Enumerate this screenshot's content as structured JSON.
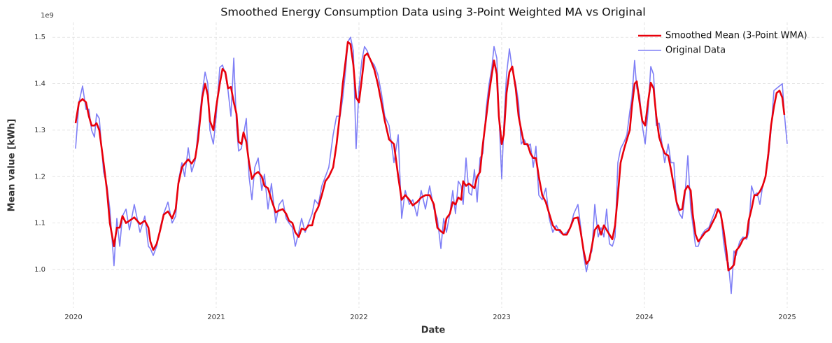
{
  "chart_data": {
    "type": "line",
    "title": "Smoothed Energy Consumption Data using 3-Point Weighted MA vs Original",
    "x_label": "Date",
    "y_label": "Mean value [kWh]",
    "y_offset_label": "1e9",
    "xlim": [
      2019.853,
      2025.255
    ],
    "ylim": [
      0.917,
      1.532
    ],
    "xticks": [
      2020,
      2021,
      2022,
      2023,
      2024,
      2025
    ],
    "yticks": [
      {
        "value": 1,
        "label": "1.0"
      },
      1.1,
      1.2,
      1.3,
      1.4,
      1.5
    ],
    "grid": true,
    "legend": "upper right",
    "x": [
      2020.015,
      2020.039,
      2020.064,
      2020.088,
      2020.108,
      2020.127,
      2020.147,
      2020.162,
      2020.181,
      2020.211,
      2020.235,
      2020.255,
      2020.284,
      2020.304,
      2020.324,
      2020.343,
      2020.368,
      2020.392,
      2020.426,
      2020.466,
      2020.5,
      2020.525,
      2020.539,
      2020.559,
      2020.583,
      2020.608,
      2020.632,
      2020.662,
      2020.691,
      2020.716,
      2020.735,
      2020.76,
      2020.779,
      2020.804,
      2020.828,
      2020.853,
      2020.873,
      2020.902,
      2020.922,
      2020.941,
      2020.956,
      2020.98,
      2021.0,
      2021.025,
      2021.044,
      2021.064,
      2021.083,
      2021.103,
      2021.123,
      2021.142,
      2021.157,
      2021.176,
      2021.191,
      2021.211,
      2021.23,
      2021.25,
      2021.27,
      2021.294,
      2021.319,
      2021.338,
      2021.363,
      2021.387,
      2021.417,
      2021.441,
      2021.466,
      2021.49,
      2021.51,
      2021.534,
      2021.554,
      2021.578,
      2021.598,
      2021.623,
      2021.647,
      2021.672,
      2021.691,
      2021.716,
      2021.74,
      2021.765,
      2021.789,
      2021.819,
      2021.843,
      2021.868,
      2021.887,
      2021.907,
      2021.922,
      2021.941,
      2021.961,
      2021.98,
      2022.0,
      2022.02,
      2022.039,
      2022.059,
      2022.083,
      2022.108,
      2022.132,
      2022.157,
      2022.181,
      2022.211,
      2022.245,
      2022.275,
      2022.299,
      2022.324,
      2022.353,
      2022.377,
      2022.407,
      2022.436,
      2022.466,
      2022.495,
      2022.525,
      2022.549,
      2022.574,
      2022.593,
      2022.613,
      2022.637,
      2022.657,
      2022.676,
      2022.696,
      2022.716,
      2022.73,
      2022.75,
      2022.77,
      2022.789,
      2022.809,
      2022.828,
      2022.848,
      2022.868,
      2022.892,
      2022.912,
      2022.931,
      2022.946,
      2022.966,
      2022.98,
      2023.0,
      2023.015,
      2023.034,
      2023.054,
      2023.074,
      2023.098,
      2023.118,
      2023.137,
      2023.157,
      2023.181,
      2023.201,
      2023.221,
      2023.24,
      2023.26,
      2023.284,
      2023.309,
      2023.333,
      2023.358,
      2023.382,
      2023.407,
      2023.431,
      2023.456,
      2023.48,
      2023.505,
      2023.534,
      2023.554,
      2023.574,
      2023.593,
      2023.613,
      2023.632,
      2023.652,
      2023.676,
      2023.696,
      2023.716,
      2023.735,
      2023.755,
      2023.775,
      2023.794,
      2023.814,
      2023.833,
      2023.858,
      2023.877,
      2023.897,
      2023.912,
      2023.931,
      2023.946,
      2023.966,
      2023.985,
      2024.005,
      2024.025,
      2024.044,
      2024.064,
      2024.083,
      2024.103,
      2024.123,
      2024.142,
      2024.167,
      2024.186,
      2024.206,
      2024.225,
      2024.245,
      2024.265,
      2024.284,
      2024.304,
      2024.324,
      2024.338,
      2024.358,
      2024.377,
      2024.402,
      2024.426,
      2024.451,
      2024.475,
      2024.5,
      2024.515,
      2024.534,
      2024.554,
      2024.574,
      2024.588,
      2024.608,
      2024.627,
      2024.642,
      2024.667,
      2024.691,
      2024.716,
      2024.73,
      2024.75,
      2024.77,
      2024.789,
      2024.809,
      2024.828,
      2024.848,
      2024.868,
      2024.887,
      2024.907,
      2024.926,
      2024.946,
      2024.966,
      2024.98,
      2025.0
    ],
    "series": [
      {
        "name": "Smoothed Mean (3-Point WMA)",
        "color": "#e8000b",
        "width": 2.6,
        "opacity": 1,
        "values": [
          1.315,
          1.36,
          1.367,
          1.36,
          1.33,
          1.31,
          1.31,
          1.315,
          1.3,
          1.23,
          1.17,
          1.1,
          1.05,
          1.09,
          1.09,
          1.115,
          1.1,
          1.105,
          1.112,
          1.098,
          1.105,
          1.09,
          1.06,
          1.042,
          1.055,
          1.085,
          1.118,
          1.125,
          1.11,
          1.13,
          1.185,
          1.22,
          1.228,
          1.237,
          1.228,
          1.24,
          1.28,
          1.37,
          1.4,
          1.375,
          1.32,
          1.3,
          1.35,
          1.4,
          1.432,
          1.425,
          1.39,
          1.393,
          1.36,
          1.335,
          1.275,
          1.27,
          1.295,
          1.275,
          1.23,
          1.195,
          1.205,
          1.21,
          1.2,
          1.18,
          1.175,
          1.15,
          1.123,
          1.127,
          1.13,
          1.12,
          1.105,
          1.1,
          1.08,
          1.07,
          1.088,
          1.085,
          1.095,
          1.095,
          1.12,
          1.135,
          1.16,
          1.19,
          1.2,
          1.22,
          1.27,
          1.34,
          1.4,
          1.45,
          1.49,
          1.485,
          1.44,
          1.37,
          1.36,
          1.41,
          1.46,
          1.465,
          1.45,
          1.43,
          1.4,
          1.36,
          1.32,
          1.28,
          1.27,
          1.2,
          1.15,
          1.16,
          1.15,
          1.138,
          1.145,
          1.155,
          1.16,
          1.16,
          1.14,
          1.09,
          1.082,
          1.078,
          1.11,
          1.12,
          1.145,
          1.14,
          1.155,
          1.15,
          1.19,
          1.18,
          1.185,
          1.18,
          1.175,
          1.2,
          1.21,
          1.27,
          1.33,
          1.38,
          1.42,
          1.45,
          1.42,
          1.33,
          1.27,
          1.29,
          1.38,
          1.425,
          1.437,
          1.39,
          1.33,
          1.3,
          1.27,
          1.27,
          1.25,
          1.24,
          1.24,
          1.2,
          1.16,
          1.145,
          1.12,
          1.095,
          1.085,
          1.085,
          1.075,
          1.075,
          1.09,
          1.11,
          1.112,
          1.08,
          1.04,
          1.012,
          1.02,
          1.05,
          1.085,
          1.095,
          1.075,
          1.095,
          1.085,
          1.075,
          1.065,
          1.095,
          1.16,
          1.23,
          1.26,
          1.28,
          1.3,
          1.35,
          1.4,
          1.405,
          1.36,
          1.32,
          1.31,
          1.36,
          1.402,
          1.39,
          1.33,
          1.285,
          1.265,
          1.25,
          1.245,
          1.215,
          1.18,
          1.145,
          1.128,
          1.13,
          1.17,
          1.18,
          1.17,
          1.12,
          1.075,
          1.06,
          1.07,
          1.08,
          1.085,
          1.1,
          1.115,
          1.13,
          1.12,
          1.085,
          1.04,
          0.998,
          1.003,
          1.01,
          1.04,
          1.05,
          1.065,
          1.07,
          1.105,
          1.13,
          1.16,
          1.16,
          1.168,
          1.18,
          1.2,
          1.25,
          1.31,
          1.35,
          1.38,
          1.385,
          1.37,
          1.333,
          null
        ]
      },
      {
        "name": "Original Data",
        "color": "#0000ee",
        "width": 1.6,
        "opacity": 0.5,
        "values": [
          1.26,
          1.36,
          1.395,
          1.345,
          1.345,
          1.3,
          1.285,
          1.335,
          1.325,
          1.21,
          1.18,
          1.13,
          1.008,
          1.11,
          1.05,
          1.115,
          1.13,
          1.085,
          1.14,
          1.08,
          1.115,
          1.05,
          1.045,
          1.03,
          1.05,
          1.09,
          1.12,
          1.145,
          1.1,
          1.115,
          1.19,
          1.23,
          1.2,
          1.262,
          1.21,
          1.235,
          1.3,
          1.38,
          1.425,
          1.4,
          1.3,
          1.27,
          1.33,
          1.435,
          1.44,
          1.42,
          1.385,
          1.33,
          1.455,
          1.31,
          1.255,
          1.26,
          1.29,
          1.325,
          1.2,
          1.15,
          1.22,
          1.24,
          1.17,
          1.205,
          1.13,
          1.185,
          1.1,
          1.14,
          1.15,
          1.11,
          1.1,
          1.09,
          1.05,
          1.08,
          1.11,
          1.08,
          1.1,
          1.12,
          1.15,
          1.14,
          1.18,
          1.2,
          1.22,
          1.29,
          1.33,
          1.33,
          1.37,
          1.43,
          1.49,
          1.5,
          1.47,
          1.26,
          1.39,
          1.45,
          1.48,
          1.47,
          1.45,
          1.44,
          1.42,
          1.38,
          1.33,
          1.31,
          1.23,
          1.29,
          1.11,
          1.17,
          1.14,
          1.15,
          1.115,
          1.17,
          1.13,
          1.18,
          1.13,
          1.11,
          1.045,
          1.11,
          1.08,
          1.12,
          1.17,
          1.12,
          1.19,
          1.18,
          1.14,
          1.24,
          1.165,
          1.16,
          1.215,
          1.145,
          1.24,
          1.25,
          1.35,
          1.4,
          1.435,
          1.48,
          1.455,
          1.34,
          1.195,
          1.31,
          1.42,
          1.475,
          1.43,
          1.4,
          1.36,
          1.27,
          1.28,
          1.265,
          1.27,
          1.22,
          1.265,
          1.16,
          1.15,
          1.175,
          1.11,
          1.08,
          1.095,
          1.08,
          1.075,
          1.08,
          1.09,
          1.12,
          1.14,
          1.09,
          1.03,
          0.995,
          1.025,
          1.04,
          1.14,
          1.07,
          1.09,
          1.07,
          1.13,
          1.055,
          1.05,
          1.07,
          1.23,
          1.26,
          1.275,
          1.29,
          1.34,
          1.37,
          1.45,
          1.39,
          1.375,
          1.31,
          1.27,
          1.34,
          1.437,
          1.42,
          1.31,
          1.315,
          1.27,
          1.23,
          1.27,
          1.23,
          1.23,
          1.14,
          1.12,
          1.11,
          1.16,
          1.245,
          1.13,
          1.1,
          1.05,
          1.05,
          1.075,
          1.085,
          1.09,
          1.11,
          1.13,
          1.13,
          1.125,
          1.06,
          1.02,
          1.015,
          0.948,
          1.04,
          1.03,
          1.06,
          1.07,
          1.065,
          1.08,
          1.18,
          1.16,
          1.165,
          1.14,
          1.18,
          1.2,
          1.24,
          1.3,
          1.385,
          1.39,
          1.395,
          1.4,
          1.335,
          1.27
        ]
      }
    ]
  }
}
